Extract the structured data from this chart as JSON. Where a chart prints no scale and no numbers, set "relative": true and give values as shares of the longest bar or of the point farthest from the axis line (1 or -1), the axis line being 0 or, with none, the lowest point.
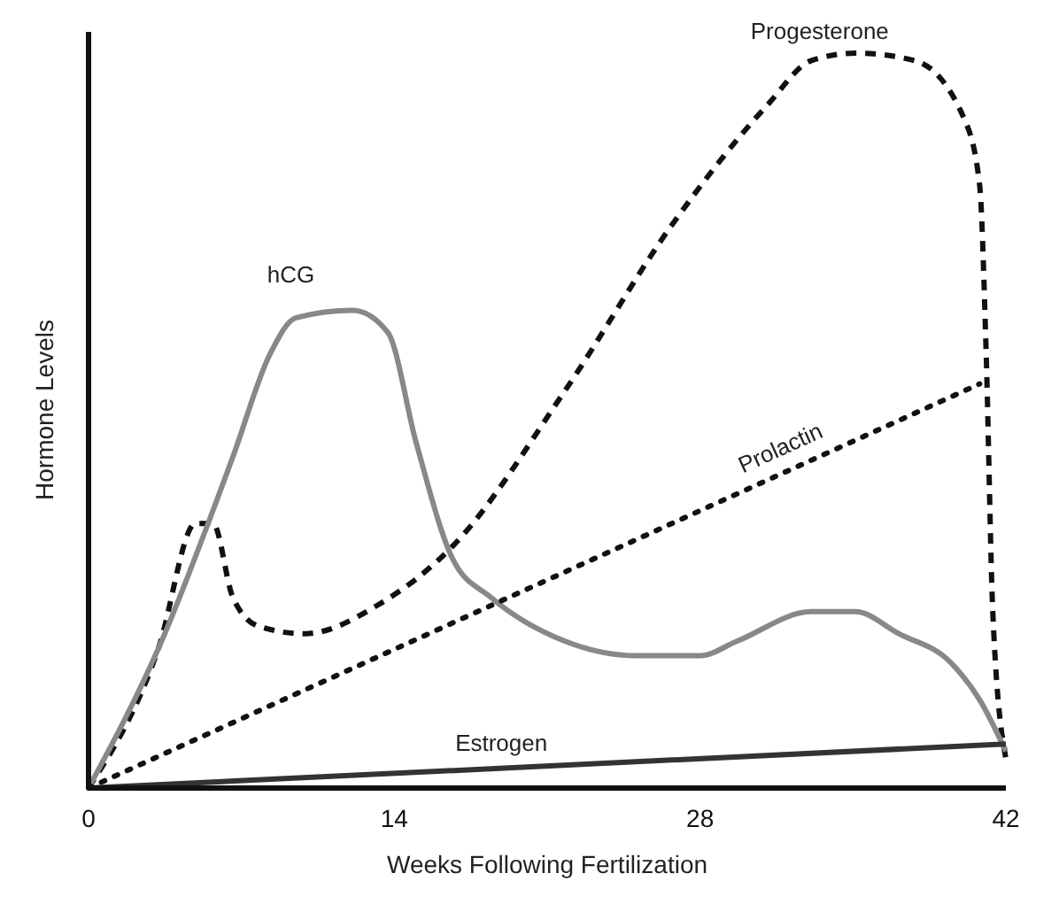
{
  "chart_data": {
    "type": "line",
    "relative": true,
    "xlabel": "Weeks Following Fertilization",
    "ylabel": "Hormone Levels",
    "xlim": [
      0,
      42
    ],
    "xticks": [
      0,
      14,
      28,
      42
    ],
    "grid": false,
    "series": [
      {
        "name": "Progesterone",
        "color": "#111111",
        "line_style": "dashed",
        "x": [
          0,
          3.2,
          4.9,
          5.7,
          6.6,
          7.8,
          9.9,
          13.3,
          16.7,
          21.8,
          26.8,
          31.1,
          33.1,
          35.1,
          37.8,
          40.1,
          40.8,
          41.1,
          41.4,
          42
        ],
        "values": [
          0,
          0.19,
          0.36,
          0.36,
          0.26,
          0.22,
          0.21,
          0.25,
          0.33,
          0.54,
          0.77,
          0.93,
          0.99,
          1,
          0.99,
          0.91,
          0.82,
          0.59,
          0.24,
          0.04
        ]
      },
      {
        "name": "hCG",
        "color": "#888888",
        "line_style": "solid",
        "x": [
          0,
          3.2,
          6.6,
          8.3,
          9.5,
          12.1,
          13.7,
          15,
          16.7,
          18.4,
          21.8,
          25.1,
          28,
          29.7,
          33.1,
          35.1,
          37.1,
          39.5,
          40.8,
          42
        ],
        "values": [
          0,
          0.19,
          0.45,
          0.59,
          0.64,
          0.65,
          0.62,
          0.47,
          0.31,
          0.26,
          0.2,
          0.18,
          0.18,
          0.2,
          0.24,
          0.24,
          0.21,
          0.17,
          0.12,
          0.05
        ]
      },
      {
        "name": "Prolactin",
        "color": "#111111",
        "line_style": "dotted",
        "x": [
          0,
          40.8
        ],
        "values": [
          0,
          0.55
        ]
      },
      {
        "name": "Estrogen",
        "color": "#333333",
        "line_style": "solid",
        "x": [
          0,
          42
        ],
        "values": [
          0,
          0.06
        ]
      }
    ]
  }
}
